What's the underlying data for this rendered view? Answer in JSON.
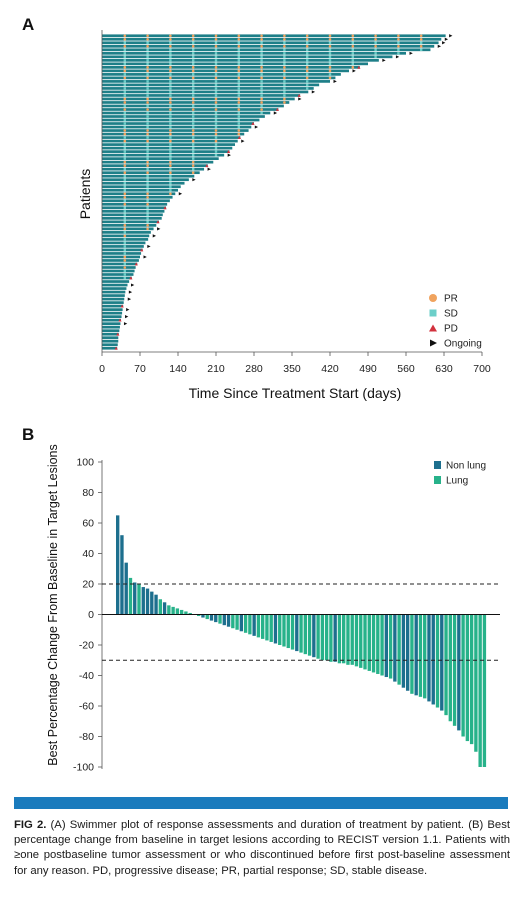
{
  "panels": {
    "a_label": "A",
    "b_label": "B"
  },
  "caption": {
    "label": "FIG 2.",
    "text": "(A) Swimmer plot of response assessments and duration of treatment by patient. (B) Best percentage change from baseline in target lesions according to RECIST version 1.1. Patients with ≥one postbaseline tumor assessment or who discontinued before first post-baseline assessment for any reason. PD, progressive disease; PR, partial response; SD, stable disease."
  },
  "chart_data": [
    {
      "type": "swimmer",
      "xlabel": "Time Since Treatment Start (days)",
      "ylabel": "Patients",
      "xlim": [
        0,
        700
      ],
      "xticks": [
        0,
        70,
        140,
        210,
        280,
        350,
        420,
        490,
        560,
        630,
        700
      ],
      "legend_position": "bottom-right",
      "legend": [
        {
          "label": "PR",
          "marker": "circle",
          "color": "#f0a35e"
        },
        {
          "label": "SD",
          "marker": "square",
          "color": "#6ccfc9"
        },
        {
          "label": "PD",
          "marker": "triangle",
          "color": "#d2313d"
        },
        {
          "label": "Ongoing",
          "marker": "arrow",
          "color": "#111111"
        }
      ],
      "bar_color": "#1e7f88",
      "durations": [
        633,
        625,
        620,
        612,
        605,
        560,
        535,
        510,
        490,
        475,
        455,
        440,
        430,
        420,
        400,
        390,
        380,
        365,
        355,
        345,
        335,
        325,
        310,
        300,
        290,
        280,
        275,
        270,
        262,
        255,
        250,
        245,
        240,
        235,
        225,
        215,
        205,
        195,
        188,
        180,
        170,
        160,
        152,
        145,
        140,
        135,
        130,
        125,
        120,
        118,
        115,
        112,
        110,
        105,
        100,
        95,
        90,
        87,
        85,
        80,
        77,
        75,
        72,
        70,
        68,
        65,
        62,
        60,
        58,
        55,
        50,
        47,
        45,
        43,
        42,
        41,
        40,
        39,
        38,
        37,
        36,
        35,
        34,
        33,
        32,
        31,
        30,
        30,
        29,
        28
      ],
      "ongoing_rows": [
        0,
        1,
        2,
        3,
        5,
        6,
        7,
        10,
        13,
        16,
        18,
        22,
        26,
        30,
        34,
        38,
        41,
        45,
        55,
        57,
        60,
        63,
        71,
        73,
        75,
        78,
        80,
        82
      ]
    },
    {
      "type": "bar",
      "title": "",
      "xlabel": "",
      "ylabel": "Best Percentage Change From Baseline in Target Lesions",
      "ylim": [
        -100,
        100
      ],
      "yticks": [
        -100,
        -80,
        -60,
        -40,
        -20,
        0,
        20,
        40,
        60,
        80,
        100
      ],
      "reference_lines": [
        20,
        -30
      ],
      "legend_position": "top-right",
      "series": [
        {
          "name": "Non lung",
          "color": "#1d6f8e"
        },
        {
          "name": "Lung",
          "color": "#27b28a"
        }
      ],
      "values": [
        65,
        52,
        34,
        24,
        21,
        20,
        18,
        17,
        15,
        13,
        10,
        8,
        6,
        5,
        4,
        3,
        2,
        1,
        0,
        -1,
        -2,
        -3,
        -4,
        -5,
        -6,
        -7,
        -8,
        -9,
        -10,
        -11,
        -12,
        -13,
        -14,
        -15,
        -16,
        -17,
        -18,
        -19,
        -20,
        -21,
        -22,
        -23,
        -24,
        -25,
        -26,
        -27,
        -28,
        -29,
        -30,
        -30,
        -31,
        -31,
        -32,
        -32,
        -33,
        -33,
        -34,
        -35,
        -36,
        -37,
        -38,
        -39,
        -40,
        -41,
        -42,
        -44,
        -46,
        -48,
        -50,
        -52,
        -53,
        -54,
        -55,
        -57,
        -59,
        -61,
        -63,
        -66,
        -70,
        -73,
        -76,
        -80,
        -83,
        -85,
        -90,
        -100,
        -100
      ],
      "series_index": [
        0,
        0,
        0,
        1,
        0,
        1,
        0,
        0,
        0,
        0,
        1,
        0,
        1,
        1,
        1,
        1,
        1,
        1,
        1,
        1,
        0,
        1,
        0,
        0,
        1,
        0,
        0,
        1,
        1,
        0,
        1,
        1,
        0,
        1,
        1,
        1,
        1,
        0,
        1,
        1,
        1,
        1,
        0,
        1,
        1,
        1,
        0,
        1,
        1,
        1,
        1,
        0,
        1,
        1,
        1,
        1,
        1,
        1,
        1,
        1,
        1,
        1,
        1,
        0,
        1,
        0,
        1,
        0,
        0,
        1,
        0,
        1,
        1,
        0,
        0,
        1,
        0,
        1,
        1,
        1,
        0,
        1,
        1,
        1,
        1,
        1,
        1
      ]
    }
  ]
}
